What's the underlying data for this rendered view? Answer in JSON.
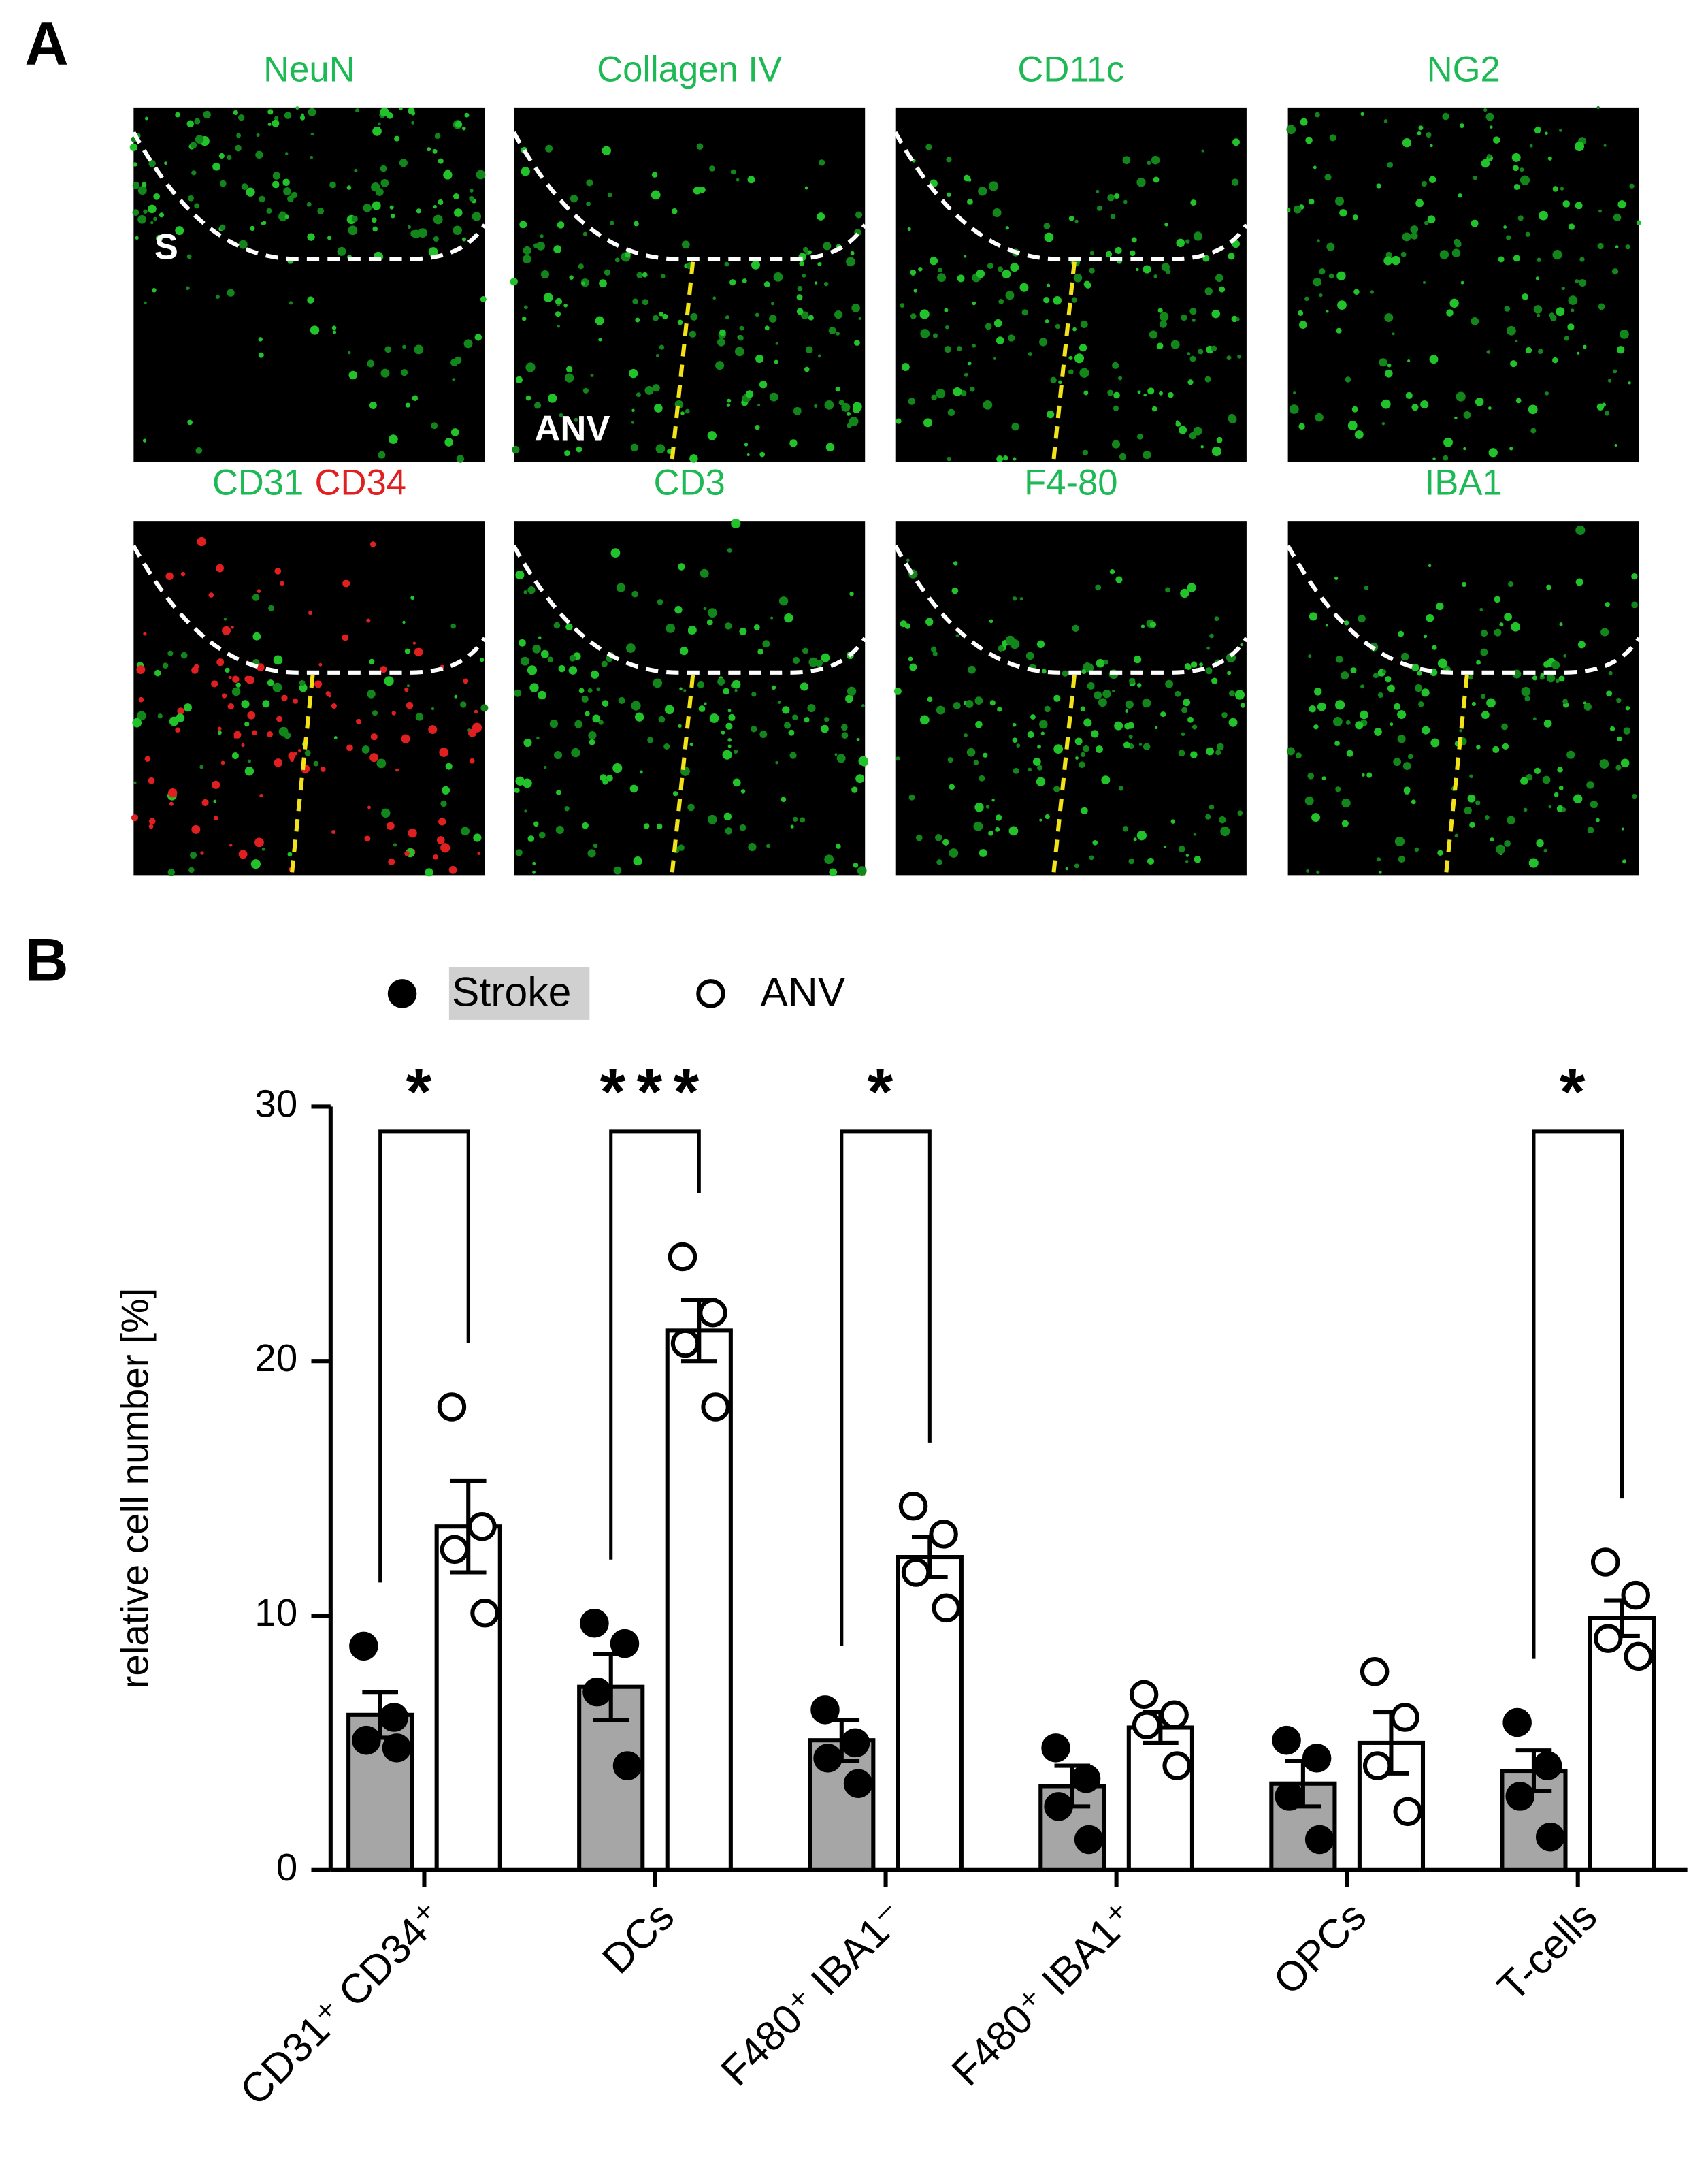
{
  "panel_labels": [
    "A",
    "B"
  ],
  "panel_a": {
    "images": [
      {
        "labels": [
          "NeuN"
        ],
        "note": "S"
      },
      {
        "labels": [
          "Collagen IV"
        ],
        "note": "ANV"
      },
      {
        "labels": [
          "CD11c"
        ]
      },
      {
        "labels": [
          "NG2"
        ]
      },
      {
        "labels": [
          "CD31",
          "CD34"
        ]
      },
      {
        "labels": [
          "CD3"
        ]
      },
      {
        "labels": [
          "F4-80"
        ]
      },
      {
        "labels": [
          "IBA1"
        ]
      }
    ]
  },
  "chart_data": {
    "type": "bar",
    "y_label": "relative cell number [%]",
    "categories": [
      "CD31⁺ CD34⁺",
      "DCs",
      "F480⁺ IBA1⁻",
      "F480⁺ IBA1⁺",
      "OPCs",
      "T-cells"
    ],
    "series": [
      {
        "name": "Stroke",
        "color": "#a6a6a6",
        "values": [
          6.1,
          7.2,
          5.1,
          3.3,
          3.4,
          3.9
        ],
        "errors": [
          0.9,
          1.3,
          0.8,
          0.8,
          0.9,
          0.8
        ],
        "points": [
          [
            8.8,
            6.0,
            5.1,
            4.8
          ],
          [
            9.7,
            8.9,
            7.0,
            4.1
          ],
          [
            6.3,
            5.0,
            4.4,
            3.4
          ],
          [
            4.8,
            3.6,
            2.5,
            1.2
          ],
          [
            5.1,
            4.4,
            2.9,
            1.2
          ],
          [
            5.8,
            4.1,
            2.9,
            1.3
          ]
        ]
      },
      {
        "name": "ANV",
        "color": "#ffffff",
        "values": [
          13.5,
          21.2,
          12.3,
          5.6,
          5.0,
          9.9
        ],
        "errors": [
          1.8,
          1.2,
          0.8,
          0.6,
          1.2,
          0.7
        ],
        "points": [
          [
            18.2,
            13.5,
            12.6,
            10.1
          ],
          [
            24.1,
            21.9,
            20.7,
            18.2
          ],
          [
            14.3,
            13.2,
            11.7,
            10.3
          ],
          [
            6.9,
            6.1,
            5.7,
            4.1
          ],
          [
            7.8,
            6.0,
            4.1,
            2.3
          ],
          [
            12.1,
            10.8,
            9.1,
            8.4
          ]
        ]
      }
    ],
    "annotations": [
      "*",
      "***",
      "*",
      null,
      null,
      "*"
    ],
    "ylim": [
      0,
      30
    ],
    "yticks": [
      0,
      10,
      20,
      30
    ]
  }
}
